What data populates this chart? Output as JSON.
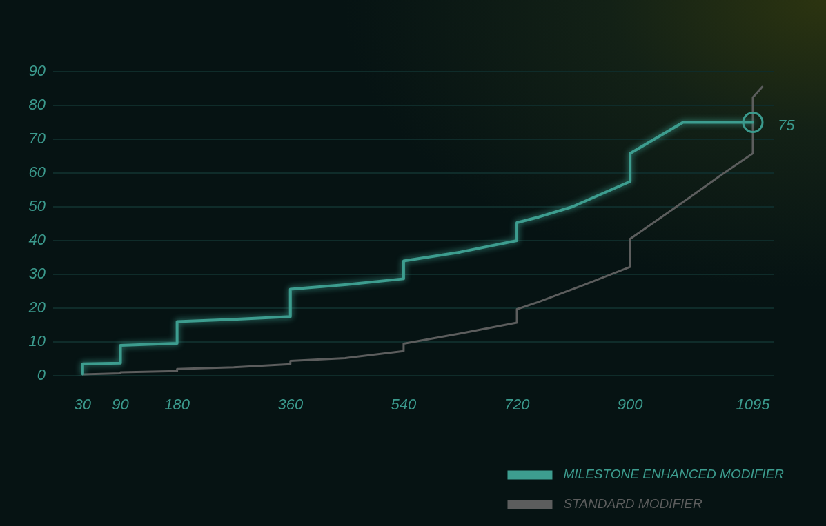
{
  "chart_data": {
    "type": "line",
    "xlim": [
      -17,
      1129
    ],
    "xticks": [
      30,
      90,
      180,
      360,
      540,
      720,
      900,
      1095
    ],
    "ylim": [
      0,
      90
    ],
    "yticks": [
      0,
      10,
      20,
      30,
      40,
      50,
      60,
      70,
      80,
      90
    ],
    "grid": "y",
    "legend": "bottom right",
    "series": [
      {
        "name": "MILESTONE ENHANCED MODIFIER",
        "color": "#3d9d8f",
        "x": [
          30,
          30,
          90,
          90,
          180,
          180,
          270,
          360,
          360,
          450,
          540,
          540,
          630,
          720,
          720,
          755,
          808,
          841,
          900,
          900,
          984,
          1095
        ],
        "values": [
          0.5,
          3.5,
          3.7,
          9.0,
          9.6,
          16.0,
          16.7,
          17.5,
          25.6,
          27.0,
          28.7,
          34.0,
          36.6,
          40.0,
          45.3,
          47.0,
          50.0,
          52.7,
          57.5,
          65.8,
          75,
          75
        ]
      },
      {
        "name": "STANDARD MODIFIER",
        "color": "#5c5d5d",
        "x": [
          30,
          90,
          90,
          180,
          180,
          270,
          360,
          360,
          447,
          540,
          540,
          630,
          720,
          720,
          754,
          827,
          900,
          900,
          947,
          994,
          1046,
          1095,
          1095,
          1110
        ],
        "values": [
          0.4,
          0.7,
          1.0,
          1.4,
          2.0,
          2.5,
          3.4,
          4.4,
          5.2,
          7.3,
          9.5,
          12.5,
          15.7,
          19.7,
          21.8,
          26.9,
          32.2,
          40.5,
          46.6,
          52.7,
          59.6,
          65.8,
          82.4,
          85.5
        ]
      }
    ],
    "annotations": [
      {
        "text": "75",
        "x": 1095,
        "y": 75
      }
    ]
  }
}
